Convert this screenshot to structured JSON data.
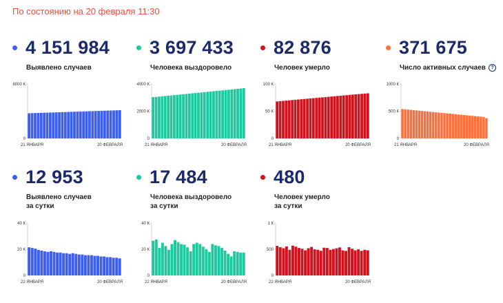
{
  "header": {
    "date_text": "По состоянию на 20 февраля 11:30"
  },
  "chart_data": [
    {
      "type": "bar",
      "color": "#3d5ff0",
      "value": "4 151 984",
      "label": "Выявлено случаев",
      "sublabel": "",
      "ylim": [
        0,
        8000
      ],
      "yticks": [
        {
          "v": 0,
          "t": "0"
        },
        {
          "v": 8000,
          "t": "8000 К"
        }
      ],
      "x_start": "21 ЯНВАРЯ",
      "x_end": "20 ФЕВРАЛЯ",
      "values": [
        3700,
        3715,
        3730,
        3745,
        3760,
        3775,
        3790,
        3805,
        3820,
        3835,
        3850,
        3865,
        3880,
        3895,
        3910,
        3925,
        3940,
        3955,
        3970,
        3985,
        4000,
        4015,
        4030,
        4045,
        4060,
        4075,
        4090,
        4105,
        4120,
        4135,
        4152
      ]
    },
    {
      "type": "bar",
      "color": "#1ec9a0",
      "value": "3 697 433",
      "label": "Человека выздоровело",
      "sublabel": "",
      "ylim": [
        0,
        4000
      ],
      "yticks": [
        {
          "v": 0,
          "t": "0"
        },
        {
          "v": 2000,
          "t": "2000 К"
        },
        {
          "v": 4000,
          "t": "4000 К"
        }
      ],
      "x_start": "21 ЯНВАРЯ",
      "x_end": "20 ФЕВРАЛЯ",
      "values": [
        3030,
        3052,
        3074,
        3096,
        3118,
        3140,
        3162,
        3184,
        3206,
        3228,
        3250,
        3272,
        3294,
        3316,
        3338,
        3360,
        3382,
        3404,
        3426,
        3448,
        3470,
        3492,
        3514,
        3536,
        3558,
        3580,
        3602,
        3624,
        3646,
        3668,
        3697
      ]
    },
    {
      "type": "bar",
      "color": "#d0131d",
      "value": "82 876",
      "label": "Человек умерло",
      "sublabel": "",
      "ylim": [
        0,
        100
      ],
      "yticks": [
        {
          "v": 0,
          "t": "0"
        },
        {
          "v": 50,
          "t": "50 К"
        },
        {
          "v": 100,
          "t": "100 К"
        }
      ],
      "x_start": "21 ЯНВАРЯ",
      "x_end": "20 ФЕВРАЛЯ",
      "values": [
        68.0,
        68.5,
        69.0,
        69.5,
        70.0,
        70.5,
        71.0,
        71.5,
        72.0,
        72.5,
        73.0,
        73.5,
        74.0,
        74.5,
        75.0,
        75.5,
        76.0,
        76.5,
        77.0,
        77.5,
        78.0,
        78.5,
        79.0,
        79.5,
        80.0,
        80.5,
        81.0,
        81.5,
        82.0,
        82.5,
        82.9
      ]
    },
    {
      "type": "bar",
      "color": "#ff6f3c",
      "value": "371 675",
      "label": "Число активных случаев",
      "sublabel": "",
      "help_icon": "question-circle-icon",
      "help_glyph": "?",
      "ylim": [
        0,
        1000
      ],
      "yticks": [
        {
          "v": 0,
          "t": "0"
        },
        {
          "v": 500,
          "t": "500 К"
        },
        {
          "v": 1000,
          "t": "1000 К"
        }
      ],
      "x_start": "21 ЯНВАРЯ",
      "x_end": "20 ФЕВРАЛЯ",
      "values": [
        540,
        535,
        530,
        525,
        520,
        515,
        510,
        505,
        500,
        495,
        490,
        485,
        480,
        475,
        470,
        465,
        460,
        455,
        450,
        445,
        440,
        435,
        430,
        425,
        420,
        415,
        410,
        405,
        400,
        395,
        372
      ]
    },
    {
      "type": "bar",
      "color": "#3d5ff0",
      "value": "12 953",
      "label": "Выявлено случаев",
      "sublabel": "за сутки",
      "ylim": [
        0,
        40
      ],
      "yticks": [
        {
          "v": 0,
          "t": "0"
        },
        {
          "v": 20,
          "t": "20 К"
        },
        {
          "v": 40,
          "t": "40 К"
        }
      ],
      "x_start": "22 ЯНВАРЯ",
      "x_end": "20 ФЕВРАЛЯ",
      "values": [
        21.5,
        21.0,
        20.5,
        19.5,
        19.0,
        18.5,
        18.0,
        18.5,
        18.0,
        17.5,
        17.5,
        17.0,
        17.0,
        16.5,
        17.0,
        16.5,
        16.0,
        16.0,
        15.5,
        15.5,
        15.5,
        15.0,
        15.0,
        14.5,
        14.5,
        14.0,
        14.0,
        13.5,
        13.5,
        13.0
      ]
    },
    {
      "type": "bar",
      "color": "#1ec9a0",
      "value": "17 484",
      "label": "Человека выздоровело",
      "sublabel": "за сутки",
      "ylim": [
        0,
        40
      ],
      "yticks": [
        {
          "v": 0,
          "t": "0"
        },
        {
          "v": 20,
          "t": "20 К"
        },
        {
          "v": 40,
          "t": "40 К"
        }
      ],
      "x_start": "22 ЯНВАРЯ",
      "x_end": "20 ФЕВРАЛЯ",
      "values": [
        26.5,
        27.5,
        21.0,
        25.0,
        22.5,
        19.5,
        24.0,
        27.0,
        25.5,
        24.0,
        23.5,
        21.5,
        18.5,
        24.0,
        25.0,
        24.0,
        22.0,
        20.0,
        18.0,
        24.0,
        23.0,
        22.5,
        21.0,
        19.0,
        16.5,
        14.5,
        18.5,
        18.0,
        17.5,
        17.5
      ]
    },
    {
      "type": "bar",
      "color": "#d0131d",
      "value": "480",
      "label": "Человек умерло",
      "sublabel": "за сутки",
      "ylim": [
        0,
        1000
      ],
      "yticks": [
        {
          "v": 0,
          "t": "0"
        },
        {
          "v": 500,
          "t": "500"
        },
        {
          "v": 1000,
          "t": "1 К"
        }
      ],
      "x_start": "22 ЯНВАРЯ",
      "x_end": "20 ФЕВРАЛЯ",
      "values": [
        565,
        540,
        520,
        555,
        490,
        570,
        550,
        525,
        510,
        480,
        520,
        545,
        500,
        490,
        470,
        530,
        525,
        490,
        505,
        520,
        535,
        480,
        470,
        540,
        510,
        480,
        500,
        470,
        490,
        480
      ]
    }
  ]
}
